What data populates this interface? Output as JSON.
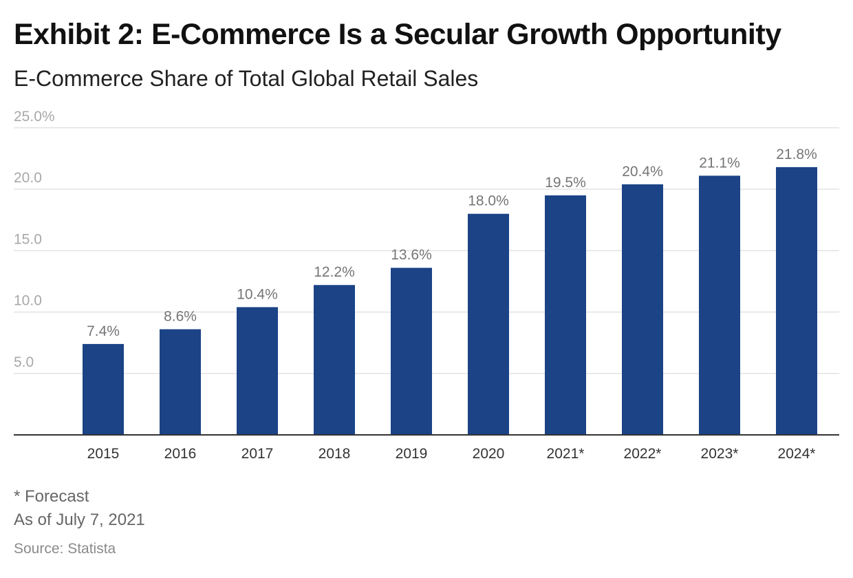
{
  "title": "Exhibit 2: E-Commerce Is a Secular Growth Opportunity",
  "subtitle": "E-Commerce Share of Total Global Retail Sales",
  "footnotes": {
    "forecast_note": "* Forecast",
    "as_of": "As of July 7, 2021",
    "source": "Source: Statista"
  },
  "colors": {
    "bar": "#1b4386",
    "gridline": "#dddddd",
    "axis_line": "#333333",
    "tick_label": "#a8a8a8",
    "data_label": "#757575",
    "category_label": "#333333"
  },
  "chart_data": {
    "type": "bar",
    "categories": [
      "2015",
      "2016",
      "2017",
      "2018",
      "2019",
      "2020",
      "2021*",
      "2022*",
      "2023*",
      "2024*"
    ],
    "values": [
      7.4,
      8.6,
      10.4,
      12.2,
      13.6,
      18.0,
      19.5,
      20.4,
      21.1,
      21.8
    ],
    "data_labels": [
      "7.4%",
      "8.6%",
      "10.4%",
      "12.2%",
      "13.6%",
      "18.0%",
      "19.5%",
      "20.4%",
      "21.1%",
      "21.8%"
    ],
    "y_ticks": [
      5,
      10,
      15,
      20,
      25
    ],
    "y_tick_labels": [
      "5.0",
      "10.0",
      "15.0",
      "20.0",
      "25.0%"
    ],
    "ylim": [
      0,
      25
    ],
    "grid": true,
    "legend": "none"
  }
}
